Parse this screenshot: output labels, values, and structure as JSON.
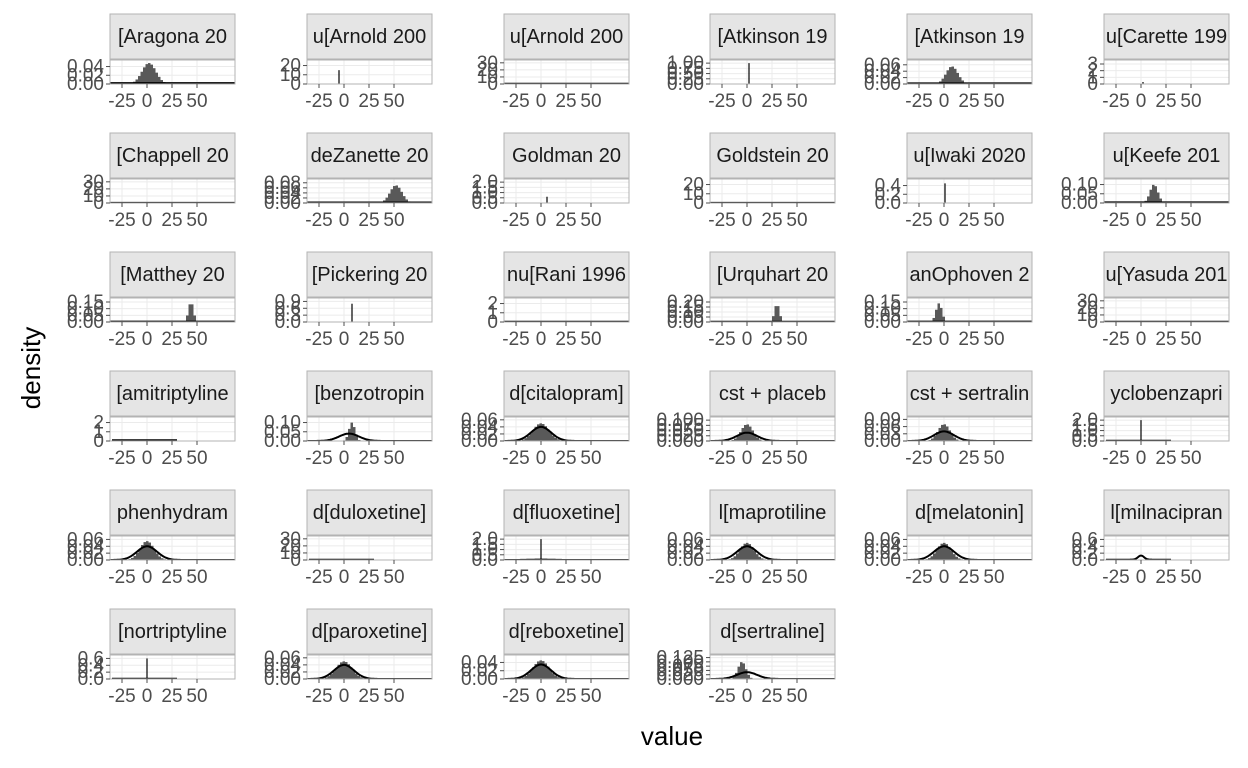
{
  "chart_data": {
    "type": "bar",
    "xlabel": "value",
    "ylabel": "density",
    "xlim": [
      -37,
      88
    ],
    "xticks": [
      -25,
      0,
      25,
      50
    ],
    "xtick_labels": [
      "-25",
      "0",
      "25",
      "50"
    ],
    "grid": true,
    "legend": "none",
    "colors": {
      "bars": "#595959",
      "curve": "#000000",
      "strip": "#e5e5e5",
      "frame": "#b3b3b3",
      "grid": "#ebebeb"
    },
    "panels": [
      {
        "label": "[Aragona 20",
        "yticks": [
          "0.00",
          "0.02",
          "0.04"
        ],
        "ymax": 0.055,
        "hist": {
          "center": 2,
          "sd": 7,
          "peak": 0.048
        },
        "curve": {
          "type": "flat",
          "level": 0.002
        }
      },
      {
        "label": "u[Arnold 200",
        "yticks": [
          "0",
          "10",
          "20"
        ],
        "ymax": 26,
        "spike": {
          "x": -5,
          "height": 15
        }
      },
      {
        "label": "u[Arnold 200",
        "yticks": [
          "0",
          "10",
          "20",
          "30"
        ],
        "ymax": 34,
        "curve": {
          "type": "flat",
          "level": 0.3
        }
      },
      {
        "label": "[Atkinson 19",
        "yticks": [
          "0.00",
          "0.25",
          "0.50",
          "0.75",
          "1.00"
        ],
        "ymax": 1.15,
        "spike": {
          "x": 2,
          "height": 1.0
        }
      },
      {
        "label": "[Atkinson 19",
        "yticks": [
          "0.00",
          "0.02",
          "0.04",
          "0.06"
        ],
        "ymax": 0.075,
        "hist": {
          "center": 8,
          "sd": 6,
          "peak": 0.055
        },
        "curve": {
          "type": "flat",
          "level": 0.002
        }
      },
      {
        "label": "u[Carette 199",
        "yticks": [
          "0",
          "1",
          "2",
          "3"
        ],
        "ymax": 3.6,
        "spike": {
          "x": 2,
          "height": 0.3
        }
      },
      {
        "label": "[Chappell 20",
        "yticks": [
          "0",
          "10",
          "20",
          "30"
        ],
        "ymax": 34,
        "curve": {
          "type": "flat",
          "level": 0.2
        }
      },
      {
        "label": "deZanette 20",
        "yticks": [
          "0.00",
          "0.02",
          "0.04",
          "0.06",
          "0.08"
        ],
        "ymax": 0.095,
        "hist": {
          "center": 52,
          "sd": 6,
          "peak": 0.07
        },
        "curve": {
          "type": "flat",
          "level": 0.002
        }
      },
      {
        "label": "Goldman 20",
        "yticks": [
          "0.0",
          "0.5",
          "1.0",
          "1.5",
          "2.0"
        ],
        "ymax": 2.3,
        "spike": {
          "x": 6,
          "height": 0.6
        }
      },
      {
        "label": "Goldstein 20",
        "yticks": [
          "0",
          "10",
          "20"
        ],
        "ymax": 26,
        "curve": {
          "type": "flat",
          "level": 0.1
        }
      },
      {
        "label": "u[Iwaki 2020",
        "yticks": [
          "0.0",
          "0.2",
          "0.4"
        ],
        "ymax": 0.55,
        "spike": {
          "x": 1,
          "height": 0.45
        }
      },
      {
        "label": "u[Keefe 201",
        "yticks": [
          "0.00",
          "0.05",
          "0.10"
        ],
        "ymax": 0.13,
        "hist": {
          "center": 13,
          "sd": 4,
          "peak": 0.1
        },
        "curve": {
          "type": "flat",
          "level": 0.003
        }
      },
      {
        "label": "[Matthey 20",
        "yticks": [
          "0.00",
          "0.05",
          "0.10",
          "0.15"
        ],
        "ymax": 0.18,
        "hist": {
          "center": 44,
          "sd": 2.5,
          "peak": 0.15
        },
        "curve": {
          "type": "flat",
          "level": 0.003
        }
      },
      {
        "label": "[Pickering 20",
        "yticks": [
          "0.0",
          "0.3",
          "0.6",
          "0.9"
        ],
        "ymax": 1.05,
        "spike": {
          "x": 8,
          "height": 0.8
        }
      },
      {
        "label": "nu[Rani 1996",
        "yticks": [
          "0",
          "1",
          "2"
        ],
        "ymax": 2.6,
        "curve": {
          "type": "flat",
          "level": 0.02
        }
      },
      {
        "label": "[Urquhart 20",
        "yticks": [
          "0.00",
          "0.05",
          "0.10",
          "0.15",
          "0.20"
        ],
        "ymax": 0.24,
        "hist": {
          "center": 30,
          "sd": 2.5,
          "peak": 0.18
        },
        "curve": {
          "type": "flat",
          "level": 0.003
        }
      },
      {
        "label": "anOphoven 2",
        "yticks": [
          "0.00",
          "0.05",
          "0.10",
          "0.15"
        ],
        "ymax": 0.18,
        "hist": {
          "center": -5,
          "sd": 3,
          "peak": 0.14
        },
        "curve": {
          "type": "flat",
          "level": 0.003
        }
      },
      {
        "label": "u[Yasuda 201",
        "yticks": [
          "0",
          "10",
          "20",
          "30"
        ],
        "ymax": 34,
        "curve": {
          "type": "flat",
          "level": 0.3
        }
      },
      {
        "label": "[amitriptyline",
        "yticks": [
          "0",
          "1",
          "2"
        ],
        "ymax": 2.6,
        "curve": {
          "type": "flat",
          "level": 0.08,
          "range": [
            -35,
            30
          ]
        }
      },
      {
        "label": "[benzotropin",
        "yticks": [
          "0.00",
          "0.05",
          "0.10"
        ],
        "ymax": 0.13,
        "hist": {
          "center": 8,
          "sd": 3,
          "peak": 0.1
        },
        "curve": {
          "type": "normal",
          "mean": 5,
          "sd": 10,
          "peak": 0.04
        }
      },
      {
        "label": "d[citalopram]",
        "yticks": [
          "0.00",
          "0.02",
          "0.04",
          "0.06"
        ],
        "ymax": 0.068,
        "hist": {
          "center": 0,
          "sd": 8,
          "peak": 0.05
        },
        "curve": {
          "type": "normal",
          "mean": 0,
          "sd": 10,
          "peak": 0.04
        }
      },
      {
        "label": "cst + placeb",
        "yticks": [
          "0.000",
          "0.025",
          "0.050",
          "0.075",
          "0.100"
        ],
        "ymax": 0.115,
        "hist": {
          "center": 0,
          "sd": 6,
          "peak": 0.08
        },
        "curve": {
          "type": "normal",
          "mean": 0,
          "sd": 10,
          "peak": 0.04
        }
      },
      {
        "label": "cst + sertralin",
        "yticks": [
          "0.00",
          "0.03",
          "0.06",
          "0.09"
        ],
        "ymax": 0.1,
        "hist": {
          "center": 0,
          "sd": 6,
          "peak": 0.07
        },
        "curve": {
          "type": "normal",
          "mean": 0,
          "sd": 10,
          "peak": 0.04
        }
      },
      {
        "label": "yclobenzapri",
        "yticks": [
          "0.0",
          "0.5",
          "1.0",
          "1.5",
          "2.0"
        ],
        "ymax": 2.3,
        "spike": {
          "x": 0,
          "height": 2.0
        },
        "curve": {
          "type": "flat",
          "level": 0.02,
          "range": [
            -35,
            30
          ]
        }
      },
      {
        "label": "phenhydram",
        "yticks": [
          "0.00",
          "0.02",
          "0.04",
          "0.06"
        ],
        "ymax": 0.07,
        "hist": {
          "center": 0,
          "sd": 7,
          "peak": 0.055
        },
        "curve": {
          "type": "normal",
          "mean": 0,
          "sd": 10,
          "peak": 0.04
        }
      },
      {
        "label": "d[duloxetine]",
        "yticks": [
          "0",
          "10",
          "20",
          "30"
        ],
        "ymax": 34,
        "curve": {
          "type": "flat",
          "level": 0.3,
          "range": [
            -35,
            30
          ]
        }
      },
      {
        "label": "d[fluoxetine]",
        "yticks": [
          "0.0",
          "0.5",
          "1.0",
          "1.5",
          "2.0"
        ],
        "ymax": 2.3,
        "spike": {
          "x": 0,
          "height": 2.0
        },
        "curve": {
          "type": "normal",
          "mean": 0,
          "sd": 10,
          "peak": 0.04
        }
      },
      {
        "label": "l[maprotiline",
        "yticks": [
          "0.00",
          "0.02",
          "0.04",
          "0.06"
        ],
        "ymax": 0.07,
        "hist": {
          "center": 0,
          "sd": 7,
          "peak": 0.05
        },
        "curve": {
          "type": "normal",
          "mean": 0,
          "sd": 10,
          "peak": 0.04
        }
      },
      {
        "label": "d[melatonin]",
        "yticks": [
          "0.00",
          "0.02",
          "0.04",
          "0.06"
        ],
        "ymax": 0.07,
        "hist": {
          "center": 0,
          "sd": 7,
          "peak": 0.05
        },
        "curve": {
          "type": "normal",
          "mean": 0,
          "sd": 10,
          "peak": 0.04
        }
      },
      {
        "label": "l[milnacipran",
        "yticks": [
          "0.0",
          "0.2",
          "0.4",
          "0.6"
        ],
        "ymax": 0.7,
        "curve": {
          "type": "normal",
          "mean": 0,
          "sd": 3,
          "peak": 0.12,
          "flat": 0.01,
          "range": [
            -35,
            30
          ]
        }
      },
      {
        "label": "[nortriptyline",
        "yticks": [
          "0.0",
          "0.2",
          "0.4",
          "0.6"
        ],
        "ymax": 0.7,
        "spike": {
          "x": 0,
          "height": 0.6
        },
        "curve": {
          "type": "flat",
          "level": 0.01,
          "range": [
            -35,
            30
          ]
        }
      },
      {
        "label": "d[paroxetine]",
        "yticks": [
          "0.00",
          "0.02",
          "0.04",
          "0.06"
        ],
        "ymax": 0.068,
        "hist": {
          "center": 0,
          "sd": 8,
          "peak": 0.05
        },
        "curve": {
          "type": "normal",
          "mean": 0,
          "sd": 10,
          "peak": 0.04
        }
      },
      {
        "label": "d[reboxetine]",
        "yticks": [
          "0.00",
          "0.02",
          "0.04"
        ],
        "ymax": 0.058,
        "hist": {
          "center": 0,
          "sd": 8,
          "peak": 0.045
        },
        "curve": {
          "type": "normal",
          "mean": 0,
          "sd": 10,
          "peak": 0.035
        }
      },
      {
        "label": "d[sertraline]",
        "yticks": [
          "0.000",
          "0.025",
          "0.050",
          "0.075",
          "0.100",
          "0.125"
        ],
        "ymax": 0.14,
        "hist": {
          "center": -5,
          "sd": 4,
          "peak": 0.1
        },
        "curve": {
          "type": "normal",
          "mean": 0,
          "sd": 10,
          "peak": 0.04
        }
      }
    ]
  }
}
